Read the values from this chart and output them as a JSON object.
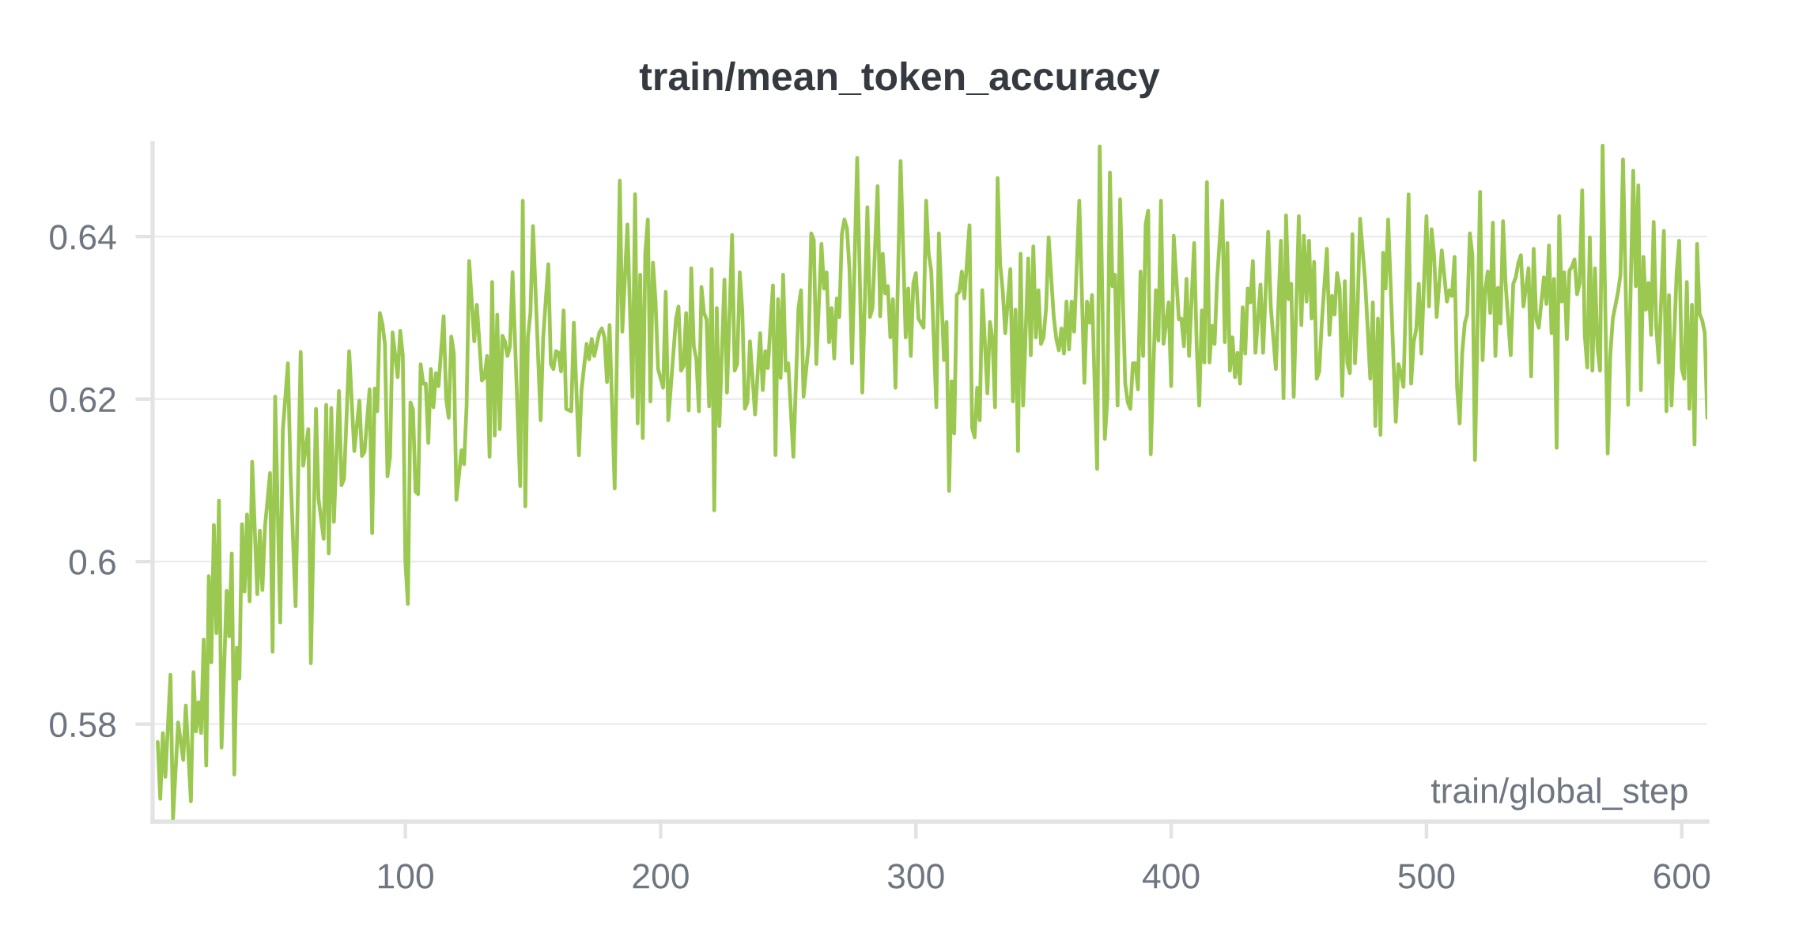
{
  "chart_data": {
    "type": "line",
    "title": "train/mean_token_accuracy",
    "xlabel": "train/global_step",
    "x": [
      3,
      4,
      5,
      6,
      8,
      9,
      11,
      13,
      14,
      16,
      17,
      18,
      19,
      20,
      21,
      22,
      23,
      24,
      25,
      26,
      27,
      28,
      30,
      31,
      32,
      33,
      34,
      35,
      36,
      37,
      38,
      39,
      40,
      42,
      43,
      44,
      45,
      47,
      48,
      49,
      51,
      52,
      54,
      55,
      57,
      59,
      60,
      62,
      63,
      65,
      66,
      68,
      69,
      70,
      71,
      72,
      74,
      75,
      76,
      78,
      80,
      82,
      83,
      84,
      86,
      87,
      88,
      89,
      90,
      91,
      92,
      93,
      94,
      95,
      97,
      98,
      99,
      100,
      101,
      102,
      103,
      104,
      105,
      106,
      107,
      108,
      109,
      110,
      111,
      112,
      113,
      115,
      116,
      117,
      118,
      119,
      120,
      122,
      123,
      124,
      125,
      127,
      128,
      130,
      131,
      132,
      133,
      134,
      135,
      136,
      137,
      138,
      139,
      140,
      141,
      142,
      145,
      146,
      147,
      148,
      149,
      150,
      153,
      154,
      156,
      157,
      158,
      159,
      160,
      161,
      162,
      163,
      165,
      166,
      168,
      169,
      171,
      172,
      173,
      174,
      176,
      177,
      178,
      179,
      180,
      182,
      184,
      185,
      187,
      189,
      190,
      191,
      192,
      193,
      194,
      195,
      196,
      197,
      198,
      199,
      201,
      202,
      203,
      206,
      207,
      208,
      209,
      210,
      211,
      212,
      213,
      214,
      215,
      216,
      217,
      218,
      219,
      220,
      221,
      222,
      223,
      225,
      226,
      228,
      229,
      230,
      231,
      232,
      233,
      234,
      235,
      237,
      239,
      240,
      241,
      242,
      244,
      245,
      246,
      247,
      248,
      249,
      250,
      252,
      254,
      255,
      256,
      258,
      259,
      260,
      261,
      263,
      264,
      265,
      266,
      267,
      268,
      269,
      270,
      271,
      272,
      273,
      274,
      275,
      277,
      279,
      281,
      282,
      283,
      285,
      286,
      287,
      288,
      289,
      290,
      291,
      292,
      294,
      296,
      297,
      298,
      299,
      300,
      301,
      303,
      304,
      305,
      306,
      308,
      309,
      311,
      312,
      313,
      314,
      315,
      316,
      317,
      318,
      319,
      321,
      322,
      323,
      324,
      325,
      326,
      328,
      329,
      330,
      331,
      332,
      333,
      334,
      335,
      337,
      338,
      339,
      340,
      341,
      342,
      344,
      345,
      346,
      347,
      348,
      349,
      350,
      351,
      352,
      354,
      355,
      356,
      357,
      358,
      359,
      360,
      361,
      362,
      364,
      366,
      367,
      368,
      369,
      371,
      372,
      374,
      375,
      376,
      377,
      378,
      379,
      380,
      382,
      383,
      384,
      385,
      386,
      387,
      388,
      389,
      390,
      391,
      392,
      394,
      395,
      396,
      397,
      399,
      400,
      401,
      403,
      404,
      405,
      406,
      407,
      409,
      410,
      411,
      412,
      413,
      414,
      415,
      416,
      417,
      418,
      420,
      421,
      422,
      423,
      424,
      425,
      426,
      427,
      428,
      429,
      430,
      431,
      432,
      433,
      435,
      436,
      438,
      439,
      441,
      443,
      444,
      445,
      446,
      447,
      448,
      450,
      451,
      452,
      453,
      454,
      455,
      456,
      457,
      458,
      459,
      461,
      462,
      463,
      464,
      465,
      466,
      467,
      468,
      469,
      470,
      471,
      472,
      473,
      474,
      476,
      478,
      479,
      480,
      481,
      482,
      483,
      484,
      485,
      488,
      489,
      490,
      491,
      493,
      494,
      495,
      496,
      497,
      498,
      500,
      501,
      502,
      503,
      504,
      506,
      508,
      509,
      510,
      511,
      512,
      513,
      514,
      515,
      516,
      517,
      518,
      519,
      521,
      522,
      523,
      524,
      525,
      526,
      527,
      528,
      529,
      530,
      531,
      533,
      534,
      535,
      536,
      537,
      538,
      540,
      541,
      542,
      543,
      544,
      546,
      547,
      548,
      549,
      550,
      551,
      552,
      553,
      554,
      555,
      556,
      557,
      558,
      559,
      560,
      561,
      562,
      563,
      564,
      565,
      566,
      567,
      568,
      569,
      571,
      572,
      573,
      575,
      576,
      577,
      579,
      581,
      582,
      583,
      584,
      585,
      586,
      587,
      588,
      589,
      590,
      591,
      593,
      594,
      595,
      596,
      598,
      599,
      600,
      601,
      602,
      603,
      604,
      605,
      606,
      607,
      608,
      609,
      610
    ],
    "series": [
      {
        "color": "#9bc850",
        "values": [
          0.5778,
          0.5708,
          0.5789,
          0.5735,
          0.5861,
          0.5684,
          0.5802,
          0.5756,
          0.5823,
          0.5705,
          0.5864,
          0.5791,
          0.5827,
          0.5789,
          0.5904,
          0.5749,
          0.5982,
          0.5876,
          0.6045,
          0.5912,
          0.6075,
          0.5771,
          0.5964,
          0.5908,
          0.601,
          0.5738,
          0.5894,
          0.5856,
          0.6046,
          0.5963,
          0.6058,
          0.5951,
          0.6123,
          0.596,
          0.6038,
          0.5965,
          0.6042,
          0.6109,
          0.5889,
          0.6203,
          0.5925,
          0.6161,
          0.6244,
          0.6112,
          0.5945,
          0.6258,
          0.6118,
          0.6163,
          0.5875,
          0.6188,
          0.6077,
          0.6028,
          0.6193,
          0.601,
          0.6189,
          0.6049,
          0.621,
          0.6094,
          0.6102,
          0.6259,
          0.6136,
          0.6198,
          0.613,
          0.6135,
          0.6212,
          0.6035,
          0.6213,
          0.6185,
          0.6306,
          0.6293,
          0.6268,
          0.6105,
          0.6129,
          0.6282,
          0.6227,
          0.6284,
          0.6254,
          0.6001,
          0.5948,
          0.6196,
          0.6187,
          0.6086,
          0.6083,
          0.6243,
          0.6219,
          0.6219,
          0.6146,
          0.6237,
          0.619,
          0.6232,
          0.6216,
          0.6302,
          0.62,
          0.6177,
          0.6277,
          0.6256,
          0.6076,
          0.6137,
          0.612,
          0.6192,
          0.637,
          0.6271,
          0.6316,
          0.6223,
          0.6227,
          0.6253,
          0.6129,
          0.6344,
          0.6155,
          0.6304,
          0.6163,
          0.6278,
          0.6271,
          0.6253,
          0.6265,
          0.6356,
          0.6093,
          0.6444,
          0.6068,
          0.6276,
          0.6306,
          0.6413,
          0.6174,
          0.6276,
          0.6366,
          0.6243,
          0.6237,
          0.6259,
          0.6257,
          0.6234,
          0.6309,
          0.6188,
          0.6185,
          0.6294,
          0.6131,
          0.6211,
          0.6268,
          0.6249,
          0.6274,
          0.6253,
          0.6282,
          0.6287,
          0.6276,
          0.6221,
          0.6291,
          0.609,
          0.6469,
          0.6283,
          0.6415,
          0.6203,
          0.6452,
          0.617,
          0.6353,
          0.6152,
          0.638,
          0.6421,
          0.6197,
          0.6368,
          0.6321,
          0.6237,
          0.6214,
          0.6332,
          0.6174,
          0.6298,
          0.6314,
          0.6235,
          0.6241,
          0.6306,
          0.6186,
          0.6361,
          0.6265,
          0.6249,
          0.6185,
          0.6338,
          0.6306,
          0.6298,
          0.6191,
          0.636,
          0.6063,
          0.6312,
          0.6167,
          0.6347,
          0.6208,
          0.6402,
          0.6235,
          0.6243,
          0.6356,
          0.6309,
          0.6188,
          0.6196,
          0.6271,
          0.6181,
          0.6281,
          0.6211,
          0.6259,
          0.6238,
          0.634,
          0.6131,
          0.6323,
          0.6226,
          0.6353,
          0.6235,
          0.6244,
          0.6129,
          0.6312,
          0.6334,
          0.6203,
          0.6268,
          0.6404,
          0.6396,
          0.6243,
          0.6391,
          0.6336,
          0.6356,
          0.627,
          0.6312,
          0.625,
          0.6324,
          0.6301,
          0.6403,
          0.6421,
          0.641,
          0.6358,
          0.6244,
          0.6497,
          0.6208,
          0.6436,
          0.6301,
          0.6312,
          0.6462,
          0.6302,
          0.6379,
          0.633,
          0.6339,
          0.6276,
          0.6323,
          0.6214,
          0.6493,
          0.6276,
          0.6336,
          0.6253,
          0.6343,
          0.6355,
          0.6299,
          0.6288,
          0.6444,
          0.6379,
          0.6358,
          0.619,
          0.6404,
          0.6248,
          0.6295,
          0.6087,
          0.6222,
          0.6158,
          0.6328,
          0.6332,
          0.6357,
          0.6324,
          0.6414,
          0.6165,
          0.6153,
          0.6214,
          0.6174,
          0.6334,
          0.6207,
          0.6295,
          0.6274,
          0.619,
          0.6472,
          0.6366,
          0.6334,
          0.6281,
          0.636,
          0.6197,
          0.631,
          0.6136,
          0.6379,
          0.6192,
          0.6373,
          0.6254,
          0.6388,
          0.6276,
          0.6334,
          0.6268,
          0.6276,
          0.6312,
          0.6399,
          0.6301,
          0.6274,
          0.626,
          0.6287,
          0.6256,
          0.632,
          0.6261,
          0.632,
          0.6283,
          0.6444,
          0.622,
          0.632,
          0.6294,
          0.6328,
          0.6114,
          0.6511,
          0.6151,
          0.62,
          0.6479,
          0.6339,
          0.6353,
          0.6192,
          0.6446,
          0.6219,
          0.6196,
          0.6188,
          0.6244,
          0.6244,
          0.6212,
          0.6357,
          0.6253,
          0.6415,
          0.6432,
          0.6132,
          0.6334,
          0.6272,
          0.6444,
          0.6268,
          0.6319,
          0.6216,
          0.6401,
          0.6298,
          0.6299,
          0.6265,
          0.6348,
          0.6253,
          0.6392,
          0.6265,
          0.6192,
          0.6309,
          0.6245,
          0.6467,
          0.6245,
          0.629,
          0.6268,
          0.6347,
          0.6444,
          0.627,
          0.6392,
          0.6235,
          0.6276,
          0.6227,
          0.6257,
          0.6219,
          0.6313,
          0.6256,
          0.6336,
          0.6319,
          0.637,
          0.6257,
          0.6341,
          0.6257,
          0.6406,
          0.6314,
          0.6237,
          0.6395,
          0.6201,
          0.6426,
          0.6323,
          0.6342,
          0.6203,
          0.6425,
          0.6291,
          0.6401,
          0.632,
          0.6395,
          0.6299,
          0.6369,
          0.6225,
          0.6234,
          0.6294,
          0.6385,
          0.6279,
          0.6327,
          0.6304,
          0.6355,
          0.6336,
          0.6204,
          0.6345,
          0.6244,
          0.6232,
          0.6403,
          0.6244,
          0.6309,
          0.6422,
          0.6344,
          0.6225,
          0.6319,
          0.6167,
          0.6299,
          0.6156,
          0.638,
          0.6336,
          0.6421,
          0.6172,
          0.6243,
          0.6232,
          0.6215,
          0.6452,
          0.6219,
          0.627,
          0.6286,
          0.6342,
          0.6256,
          0.6425,
          0.6314,
          0.6409,
          0.6377,
          0.6301,
          0.6383,
          0.632,
          0.6334,
          0.6327,
          0.6375,
          0.6214,
          0.617,
          0.6257,
          0.6293,
          0.6305,
          0.6404,
          0.6377,
          0.6125,
          0.6455,
          0.6248,
          0.6334,
          0.6357,
          0.6306,
          0.6417,
          0.6253,
          0.6337,
          0.6293,
          0.6419,
          0.6342,
          0.6254,
          0.6342,
          0.635,
          0.6368,
          0.6377,
          0.6314,
          0.6361,
          0.6228,
          0.6385,
          0.6298,
          0.6288,
          0.635,
          0.6317,
          0.6389,
          0.6281,
          0.6348,
          0.614,
          0.6425,
          0.632,
          0.6356,
          0.6274,
          0.6358,
          0.6363,
          0.6372,
          0.6329,
          0.6343,
          0.6457,
          0.6279,
          0.6239,
          0.6399,
          0.6235,
          0.6361,
          0.6263,
          0.6235,
          0.6512,
          0.6133,
          0.6254,
          0.6299,
          0.6331,
          0.6353,
          0.6495,
          0.6193,
          0.6481,
          0.6339,
          0.6463,
          0.6211,
          0.6375,
          0.631,
          0.6343,
          0.6279,
          0.6418,
          0.629,
          0.6245,
          0.6407,
          0.6185,
          0.6328,
          0.6192,
          0.6355,
          0.6395,
          0.6238,
          0.6225,
          0.6344,
          0.6188,
          0.6316,
          0.6144,
          0.6391,
          0.6305,
          0.6297,
          0.6282,
          0.6177
        ]
      }
    ],
    "xlim": [
      1,
      610
    ],
    "ylim": [
      0.568,
      0.6515
    ],
    "xticks": [
      100,
      200,
      300,
      400,
      500,
      600
    ],
    "yticks": [
      0.58,
      0.6,
      0.62,
      0.64
    ],
    "grid": "y",
    "line_style": "solid"
  }
}
